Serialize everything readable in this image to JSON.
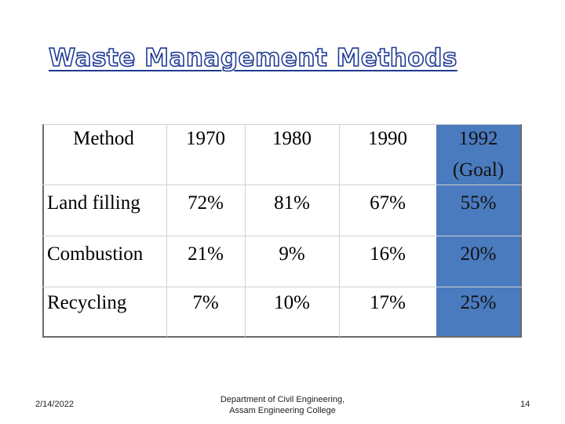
{
  "slide": {
    "title": "Waste Management Methods",
    "date": "2/14/2022",
    "footer_line1": "Department of Civil Engineering,",
    "footer_line2": "Assam Engineering College",
    "page_number": "14",
    "accent_color": "#1f3a93",
    "highlight_color": "#4a7bbf"
  },
  "table": {
    "headers": [
      "Method",
      "1970",
      "1980",
      "1990",
      "1992"
    ],
    "goal_label": "(Goal)",
    "rows": [
      {
        "method": "Land filling",
        "values": [
          "72%",
          "81%",
          "67%",
          "55%"
        ]
      },
      {
        "method": "Combustion",
        "values": [
          "21%",
          "9%",
          "16%",
          "20%"
        ]
      },
      {
        "method": "Recycling",
        "values": [
          "7%",
          "10%",
          "17%",
          "25%"
        ]
      }
    ]
  }
}
